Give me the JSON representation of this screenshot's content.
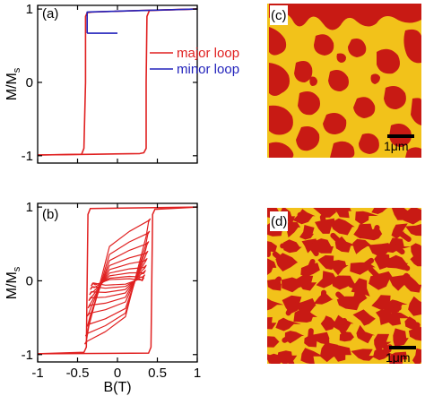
{
  "colors": {
    "major": "#e02020",
    "minor": "#2222bb",
    "domain_yellow": "#f2c21a",
    "domain_red": "#c81a14",
    "background": "#ffffff"
  },
  "chart_data": [
    {
      "type": "line",
      "panel": "(a)",
      "xlim": [
        -1,
        1
      ],
      "ylim": [
        -1.1,
        1.05
      ],
      "ylabel": "M/M",
      "ylabel_sub": "s",
      "xlabel": "",
      "yticks": [
        "-1",
        "0",
        "1"
      ],
      "xticks": [
        -1,
        -0.5,
        0,
        0.5,
        1
      ],
      "legend_placement": "center-right",
      "series": [
        {
          "name": "major loop",
          "color": "#e02020",
          "x": [
            -1.0,
            -0.45,
            -0.42,
            -0.4,
            -0.4,
            -0.38,
            -0.32,
            0.3,
            1.0
          ],
          "y": [
            -0.99,
            -0.98,
            -0.9,
            0.0,
            0.9,
            0.95,
            0.96,
            0.98,
            1.0
          ]
        },
        {
          "name": "major loop",
          "color": "#e02020",
          "x": [
            1.0,
            0.4,
            0.37,
            0.36,
            0.36,
            0.33,
            0.28,
            -0.3,
            -1.0
          ],
          "y": [
            1.0,
            0.98,
            0.9,
            0.0,
            -0.9,
            -0.96,
            -0.97,
            -0.98,
            -0.99
          ]
        },
        {
          "name": "minor loop",
          "color": "#2222bb",
          "x": [
            -0.38,
            -0.38,
            1.0
          ],
          "y": [
            0.67,
            0.96,
            1.0
          ]
        },
        {
          "name": "minor loop",
          "color": "#2222bb",
          "x": [
            -0.38,
            0.0
          ],
          "y": [
            0.67,
            0.67
          ]
        }
      ],
      "legend": [
        "major loop",
        "minor loop"
      ]
    },
    {
      "type": "line",
      "panel": "(b)",
      "xlim": [
        -1,
        1
      ],
      "ylim": [
        -1.1,
        1.05
      ],
      "ylabel": "M/M",
      "ylabel_sub": "s",
      "xlabel": "B(T)",
      "yticks": [
        "-1",
        "0",
        "1"
      ],
      "xticks": [
        "-1",
        "-0.5",
        "0",
        "0.5",
        "1"
      ],
      "major_loop": {
        "Hc_ascending": 0.45,
        "Hc_descending": -0.4,
        "saturation": 1.0
      },
      "minor_loops": [
        {
          "amplitude": 0.41,
          "m_top": 0.84,
          "m_bottom": -0.86
        },
        {
          "amplitude": 0.4,
          "m_top": 0.67,
          "m_bottom": -0.75
        },
        {
          "amplitude": 0.39,
          "m_top": 0.53,
          "m_bottom": -0.63
        },
        {
          "amplitude": 0.38,
          "m_top": 0.4,
          "m_bottom": -0.48
        },
        {
          "amplitude": 0.37,
          "m_top": 0.3,
          "m_bottom": -0.37
        },
        {
          "amplitude": 0.36,
          "m_top": 0.21,
          "m_bottom": -0.27
        },
        {
          "amplitude": 0.35,
          "m_top": 0.14,
          "m_bottom": -0.19
        },
        {
          "amplitude": 0.34,
          "m_top": 0.08,
          "m_bottom": -0.12
        },
        {
          "amplitude": 0.33,
          "m_top": 0.04,
          "m_bottom": -0.07
        }
      ]
    }
  ],
  "images": [
    {
      "panel": "(c)",
      "scale_bar": "1μm",
      "pattern": "sparse irregular red domains in yellow"
    },
    {
      "panel": "(d)",
      "scale_bar": "1μm",
      "pattern": "dense labyrinth red/yellow domains"
    }
  ]
}
